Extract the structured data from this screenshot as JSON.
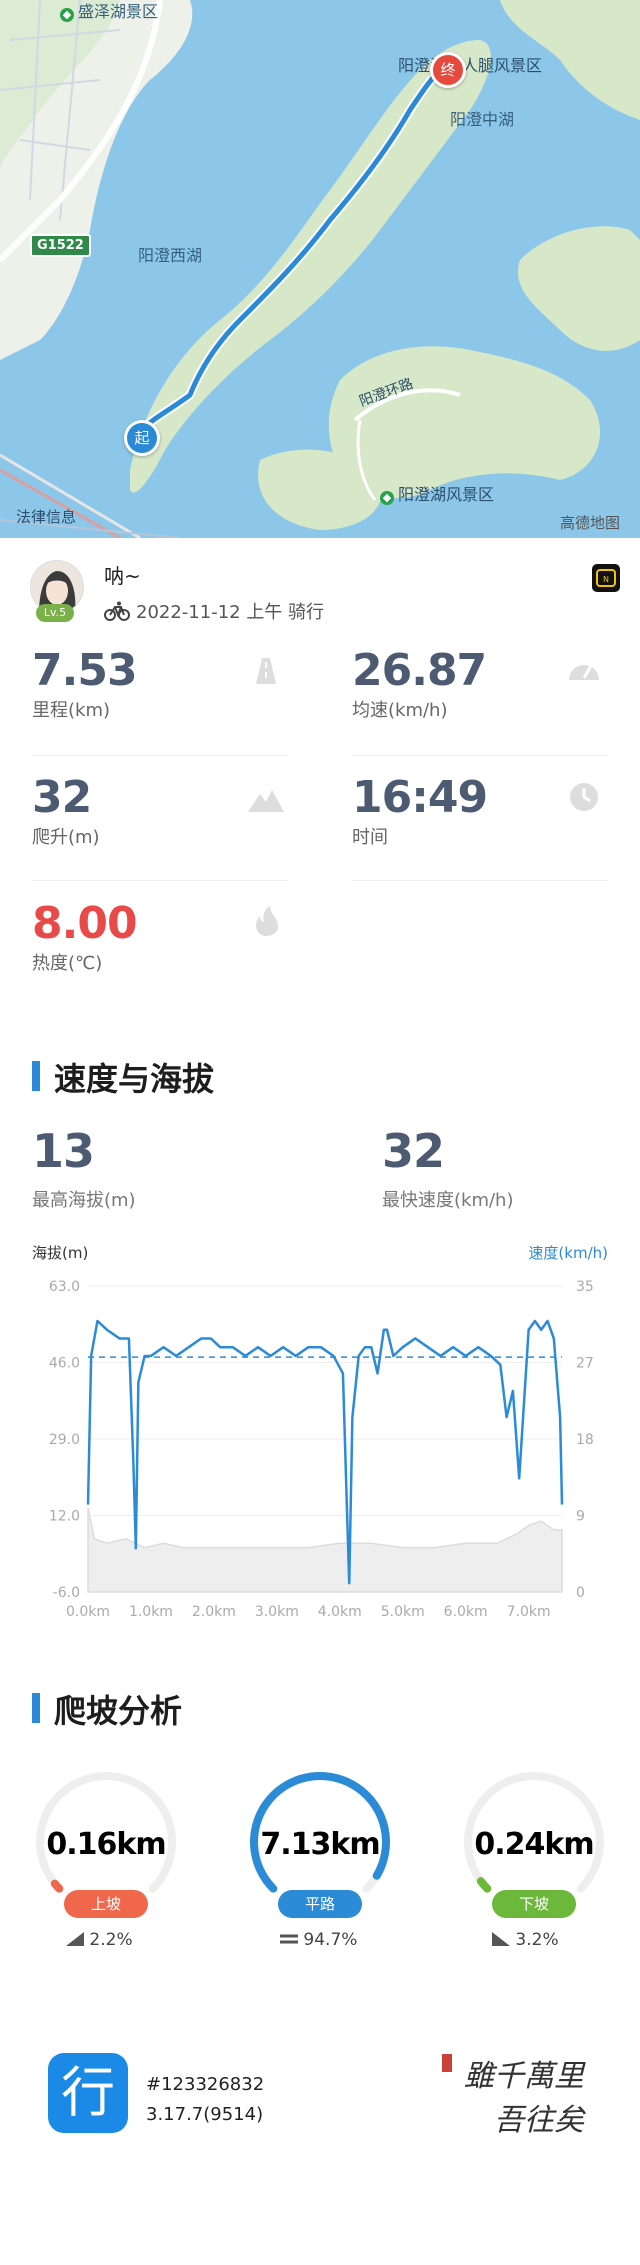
{
  "map": {
    "labels": {
      "shengze": "盛泽湖景区",
      "meirenti": "阳澄湖美人腿风景区",
      "zhonghu": "阳澄中湖",
      "xihu": "阳澄西湖",
      "huanlu": "阳澄环路",
      "fengjingqu": "阳澄湖风景区",
      "legal": "法律信息",
      "provider": "高德地图",
      "road_code": "G1522"
    },
    "start_label": "起",
    "end_label": "终",
    "route_color": "#2b8ad8"
  },
  "profile": {
    "username": "呐~",
    "level": "Lv.5",
    "date_line": "2022-11-12 上午 骑行"
  },
  "stats": [
    {
      "value": "7.53",
      "label": "里程(km)",
      "icon": "road-icon"
    },
    {
      "value": "26.87",
      "label": "均速(km/h)",
      "icon": "speedometer-icon"
    },
    {
      "value": "32",
      "label": "爬升(m)",
      "icon": "mountain-icon"
    },
    {
      "value": "16:49",
      "label": "时间",
      "icon": "clock-icon"
    },
    {
      "value": "8.00",
      "label": "热度(℃)",
      "icon": "flame-icon"
    }
  ],
  "speed_section": {
    "title": "速度与海拔",
    "max_alt_value": "13",
    "max_alt_label": "最高海拔(m)",
    "max_speed_value": "32",
    "max_speed_label": "最快速度(km/h)"
  },
  "chart_data": {
    "type": "line",
    "title": "速度与海拔",
    "left_axis_label": "海拔(m)",
    "right_axis_label": "速度(km/h)",
    "left_ticks": [
      "63.0",
      "46.0",
      "29.0",
      "12.0",
      "-6.0"
    ],
    "right_ticks": [
      "35",
      "27",
      "18",
      "9",
      "0"
    ],
    "x_ticks": [
      "0.0km",
      "1.0km",
      "2.0km",
      "3.0km",
      "4.0km",
      "5.0km",
      "6.0km",
      "7.0km"
    ],
    "xlim": [
      0,
      7.53
    ],
    "speed_ylim": [
      0,
      35
    ],
    "altitude_ylim": [
      -6,
      63
    ],
    "avg_speed": 26.87,
    "series": [
      {
        "name": "速度",
        "color": "#2c8bd6",
        "x": [
          0.0,
          0.05,
          0.15,
          0.3,
          0.5,
          0.65,
          0.72,
          0.76,
          0.8,
          0.9,
          1.0,
          1.2,
          1.4,
          1.6,
          1.8,
          1.95,
          2.1,
          2.3,
          2.5,
          2.7,
          2.9,
          3.1,
          3.3,
          3.5,
          3.7,
          3.9,
          4.05,
          4.12,
          4.15,
          4.2,
          4.3,
          4.4,
          4.5,
          4.6,
          4.7,
          4.75,
          4.85,
          5.0,
          5.2,
          5.4,
          5.6,
          5.8,
          6.0,
          6.2,
          6.4,
          6.55,
          6.65,
          6.75,
          6.85,
          7.0,
          7.1,
          7.2,
          7.3,
          7.4,
          7.5,
          7.53
        ],
        "values": [
          10,
          27,
          31,
          30,
          29,
          29,
          15,
          5,
          24,
          27,
          27,
          28,
          27,
          28,
          29,
          29,
          28,
          28,
          27,
          28,
          27,
          28,
          27,
          28,
          28,
          27,
          25,
          8,
          1,
          20,
          27,
          28,
          28,
          25,
          30,
          30,
          27,
          28,
          29,
          28,
          27,
          28,
          27,
          28,
          27,
          26,
          20,
          23,
          13,
          30,
          31,
          30,
          31,
          29,
          20,
          10
        ]
      },
      {
        "name": "海拔",
        "color": "#d9d9d9",
        "x": [
          0.0,
          0.1,
          0.3,
          0.6,
          0.9,
          1.2,
          1.5,
          2.0,
          2.5,
          3.0,
          3.5,
          4.0,
          4.2,
          4.5,
          5.0,
          5.5,
          6.0,
          6.5,
          6.8,
          7.0,
          7.2,
          7.4,
          7.53
        ],
        "values": [
          13,
          6,
          5,
          6,
          4,
          5,
          4,
          4,
          4,
          4,
          4,
          5,
          5,
          5,
          4,
          4,
          5,
          5,
          7,
          9,
          10,
          8,
          8
        ]
      }
    ]
  },
  "climb_section": {
    "title": "爬坡分析",
    "items": [
      {
        "value": "0.16km",
        "label": "上坡",
        "percent": "2.2%",
        "color": "#f0684c"
      },
      {
        "value": "7.13km",
        "label": "平路",
        "percent": "94.7%",
        "color": "#2c8bd6"
      },
      {
        "value": "0.24km",
        "label": "下坡",
        "percent": "3.2%",
        "color": "#6cb83a"
      }
    ]
  },
  "footer": {
    "app_glyph": "行",
    "record_id": "#123326832",
    "version": "3.17.7(9514)",
    "seal_line1": "雖千萬里",
    "seal_line2": "吾往矣"
  }
}
